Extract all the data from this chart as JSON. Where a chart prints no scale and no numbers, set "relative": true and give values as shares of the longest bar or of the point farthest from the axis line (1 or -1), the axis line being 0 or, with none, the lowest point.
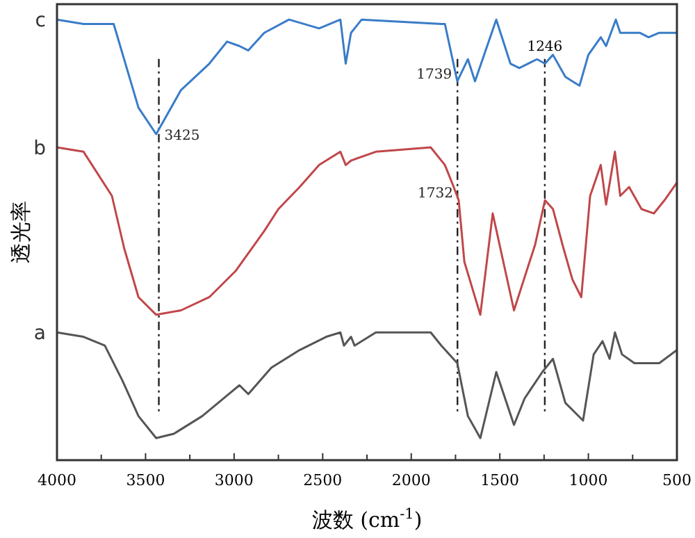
{
  "chart_data": {
    "type": "line",
    "relative": true,
    "xlabel": "波数 (cm$^{-1}$)",
    "ylabel": "透光率",
    "xlim": [
      4000,
      500
    ],
    "xticks": [
      4000,
      {
        "value": 3750,
        "label": null
      },
      3500,
      {
        "value": 3250,
        "label": null
      },
      3000,
      {
        "value": 2750,
        "label": null
      },
      2500,
      {
        "value": 2250,
        "label": null
      },
      2000,
      {
        "value": 1750,
        "label": null
      },
      1500,
      {
        "value": 1250,
        "label": null
      },
      1000,
      {
        "value": 750,
        "label": null
      },
      500
    ],
    "grid": false,
    "legend": false,
    "marker": "none",
    "line_style": "solid",
    "series": [
      {
        "name": "c",
        "color": "#3a7cc8",
        "x": [
          4000,
          3850,
          3680,
          3540,
          3440,
          3300,
          3140,
          3040,
          2970,
          2920,
          2830,
          2690,
          2520,
          2400,
          2370,
          2340,
          2280,
          1830,
          1810,
          1740,
          1680,
          1640,
          1520,
          1440,
          1390,
          1290,
          1245,
          1200,
          1130,
          1090,
          1050,
          1000,
          930,
          900,
          845,
          820,
          710,
          660,
          600,
          500
        ],
        "values": [
          1.0,
          0.99,
          0.99,
          0.8,
          0.74,
          0.84,
          0.9,
          0.95,
          0.94,
          0.93,
          0.97,
          1.0,
          0.98,
          1.0,
          0.9,
          0.97,
          1.0,
          0.99,
          0.99,
          0.86,
          0.91,
          0.86,
          1.0,
          0.9,
          0.89,
          0.91,
          0.9,
          0.92,
          0.87,
          0.86,
          0.85,
          0.92,
          0.96,
          0.94,
          1.0,
          0.97,
          0.97,
          0.96,
          0.97,
          0.97
        ]
      },
      {
        "name": "b",
        "color": "#c0474a",
        "x": [
          4000,
          3850,
          3690,
          3620,
          3540,
          3440,
          3300,
          3140,
          2990,
          2830,
          2750,
          2630,
          2520,
          2400,
          2370,
          2340,
          2200,
          1890,
          1810,
          1770,
          1732,
          1700,
          1610,
          1540,
          1420,
          1300,
          1245,
          1200,
          1140,
          1090,
          1040,
          990,
          930,
          900,
          850,
          820,
          770,
          700,
          630,
          570,
          500
        ],
        "values": [
          0.71,
          0.7,
          0.6,
          0.48,
          0.37,
          0.33,
          0.34,
          0.37,
          0.43,
          0.52,
          0.57,
          0.62,
          0.67,
          0.7,
          0.67,
          0.68,
          0.7,
          0.71,
          0.67,
          0.63,
          0.59,
          0.45,
          0.33,
          0.56,
          0.34,
          0.49,
          0.59,
          0.57,
          0.48,
          0.41,
          0.37,
          0.6,
          0.67,
          0.58,
          0.7,
          0.6,
          0.62,
          0.57,
          0.56,
          0.59,
          0.63
        ]
      },
      {
        "name": "a",
        "color": "#555555",
        "x": [
          4000,
          3850,
          3730,
          3630,
          3540,
          3440,
          3340,
          3180,
          3030,
          2970,
          2920,
          2790,
          2630,
          2480,
          2400,
          2380,
          2340,
          2320,
          2200,
          2100,
          1890,
          1830,
          1740,
          1680,
          1610,
          1520,
          1420,
          1360,
          1260,
          1200,
          1130,
          1080,
          1030,
          970,
          920,
          880,
          850,
          810,
          740,
          710,
          600,
          500
        ],
        "values": [
          0.29,
          0.28,
          0.26,
          0.18,
          0.1,
          0.05,
          0.06,
          0.1,
          0.15,
          0.17,
          0.15,
          0.21,
          0.25,
          0.28,
          0.29,
          0.26,
          0.28,
          0.26,
          0.29,
          0.29,
          0.29,
          0.26,
          0.22,
          0.1,
          0.05,
          0.2,
          0.08,
          0.14,
          0.2,
          0.23,
          0.13,
          0.11,
          0.09,
          0.24,
          0.27,
          0.23,
          0.29,
          0.24,
          0.22,
          0.22,
          0.22,
          0.25
        ]
      }
    ],
    "ref_lines": [
      {
        "axis": "x",
        "value": 3425
      },
      {
        "axis": "x",
        "value": 1739
      },
      {
        "axis": "x",
        "value": 1246,
        "label": "1246"
      }
    ],
    "annotations": [
      {
        "text": "3425",
        "x": 3425,
        "y": 0.74
      },
      {
        "text": "1739",
        "x": 1739,
        "y": 0.86
      },
      {
        "text": "1732",
        "x": 1732,
        "y": 0.59
      }
    ]
  }
}
